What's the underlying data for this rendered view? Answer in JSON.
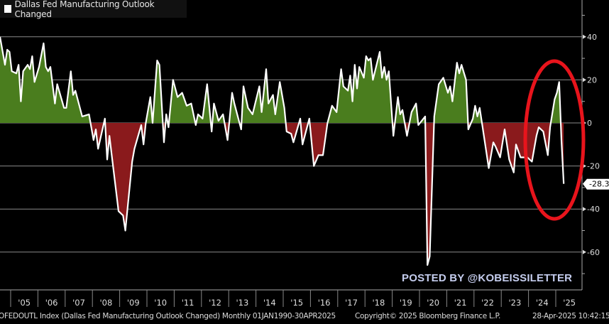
{
  "legend": {
    "label": "Dallas Fed Manufacturing Outlook Changed"
  },
  "watermark": "POSTED BY @KOBEISSILETTER",
  "footer": {
    "index_info": "OFEDOUTL Index (Dallas Fed Manufacturing Outlook Changed)  Monthly 01JAN1990-30APR2025",
    "copyright": "Copyright© 2025 Bloomberg Finance L.P.",
    "timestamp": "28-Apr-2025 10:42:15"
  },
  "colors": {
    "positive_fill": "#4a7d1e",
    "negative_fill": "#8a1a1c",
    "line": "#ffffff",
    "annotation_ellipse": "#e8141c",
    "watermark": "#c5cdee",
    "grid": "#8a8a8a"
  },
  "chart_data": {
    "type": "area",
    "title": "",
    "xlabel": "",
    "ylabel": "",
    "ylim": [
      -70,
      57
    ],
    "xlim": [
      "2004-08",
      "2025-04"
    ],
    "y_ticks": [
      40,
      20,
      0,
      -20,
      -40,
      -60
    ],
    "x_tick_labels": [
      "'05",
      "'06",
      "'07",
      "'08",
      "'09",
      "'10",
      "'11",
      "'12",
      "'13",
      "'14",
      "'15",
      "'16",
      "'17",
      "'18",
      "'19",
      "'20",
      "'21",
      "'22",
      "'23",
      "'24",
      "'25"
    ],
    "grid": true,
    "axis_position": "right",
    "last_value_label": "-28.3",
    "annotation": "red ellipse",
    "series": [
      {
        "name": "Dallas Fed Manufacturing Outlook Changed",
        "points": [
          [
            "2004-08",
            40
          ],
          [
            "2004-10",
            27
          ],
          [
            "2004-11",
            34
          ],
          [
            "2004-12",
            33
          ],
          [
            "2005-01",
            24
          ],
          [
            "2005-03",
            23
          ],
          [
            "2005-04",
            27
          ],
          [
            "2005-05",
            10
          ],
          [
            "2005-06",
            24
          ],
          [
            "2005-08",
            27
          ],
          [
            "2005-09",
            25
          ],
          [
            "2005-10",
            31
          ],
          [
            "2005-11",
            19
          ],
          [
            "2006-01",
            26
          ],
          [
            "2006-03",
            37
          ],
          [
            "2006-04",
            26
          ],
          [
            "2006-05",
            24
          ],
          [
            "2006-06",
            26
          ],
          [
            "2006-08",
            9
          ],
          [
            "2006-09",
            18
          ],
          [
            "2006-12",
            7
          ],
          [
            "2007-01",
            7
          ],
          [
            "2007-03",
            24
          ],
          [
            "2007-04",
            13
          ],
          [
            "2007-05",
            15
          ],
          [
            "2007-08",
            3
          ],
          [
            "2007-11",
            4
          ],
          [
            "2008-01",
            -8
          ],
          [
            "2008-02",
            -3
          ],
          [
            "2008-03",
            -12
          ],
          [
            "2008-06",
            2
          ],
          [
            "2008-07",
            -17
          ],
          [
            "2008-08",
            -6
          ],
          [
            "2008-09",
            -15
          ],
          [
            "2008-12",
            -41
          ],
          [
            "2009-02",
            -43
          ],
          [
            "2009-03",
            -50
          ],
          [
            "2009-06",
            -18
          ],
          [
            "2009-07",
            -12
          ],
          [
            "2009-10",
            -1
          ],
          [
            "2009-11",
            -10
          ],
          [
            "2009-12",
            0
          ],
          [
            "2010-02",
            12
          ],
          [
            "2010-03",
            0
          ],
          [
            "2010-05",
            29
          ],
          [
            "2010-06",
            27
          ],
          [
            "2010-08",
            -9
          ],
          [
            "2010-09",
            4
          ],
          [
            "2010-10",
            -2
          ],
          [
            "2010-12",
            20
          ],
          [
            "2011-02",
            12
          ],
          [
            "2011-04",
            14
          ],
          [
            "2011-06",
            8
          ],
          [
            "2011-08",
            9
          ],
          [
            "2011-10",
            -1
          ],
          [
            "2011-11",
            4
          ],
          [
            "2012-01",
            2
          ],
          [
            "2012-03",
            18
          ],
          [
            "2012-05",
            -4
          ],
          [
            "2012-06",
            9
          ],
          [
            "2012-08",
            1
          ],
          [
            "2012-10",
            4
          ],
          [
            "2012-12",
            -8
          ],
          [
            "2013-02",
            14
          ],
          [
            "2013-03",
            9
          ],
          [
            "2013-06",
            -3
          ],
          [
            "2013-07",
            17
          ],
          [
            "2013-09",
            7
          ],
          [
            "2013-11",
            4
          ],
          [
            "2014-02",
            17
          ],
          [
            "2014-03",
            5
          ],
          [
            "2014-05",
            25
          ],
          [
            "2014-06",
            9
          ],
          [
            "2014-08",
            13
          ],
          [
            "2014-09",
            4
          ],
          [
            "2014-11",
            19
          ],
          [
            "2015-01",
            7
          ],
          [
            "2015-02",
            -4
          ],
          [
            "2015-04",
            -5
          ],
          [
            "2015-05",
            -9
          ],
          [
            "2015-08",
            2
          ],
          [
            "2015-09",
            -10
          ],
          [
            "2015-12",
            2
          ],
          [
            "2016-02",
            -20
          ],
          [
            "2016-04",
            -15
          ],
          [
            "2016-06",
            -15
          ],
          [
            "2016-08",
            0
          ],
          [
            "2016-10",
            8
          ],
          [
            "2016-12",
            5
          ],
          [
            "2017-02",
            25
          ],
          [
            "2017-03",
            17
          ],
          [
            "2017-05",
            15
          ],
          [
            "2017-06",
            22
          ],
          [
            "2017-07",
            10
          ],
          [
            "2017-08",
            27
          ],
          [
            "2017-09",
            16
          ],
          [
            "2017-10",
            26
          ],
          [
            "2017-12",
            21
          ],
          [
            "2018-01",
            31
          ],
          [
            "2018-02",
            29
          ],
          [
            "2018-03",
            30
          ],
          [
            "2018-04",
            20
          ],
          [
            "2018-07",
            33
          ],
          [
            "2018-08",
            21
          ],
          [
            "2018-09",
            26
          ],
          [
            "2018-10",
            20
          ],
          [
            "2018-11",
            24
          ],
          [
            "2019-01",
            -6
          ],
          [
            "2019-03",
            12
          ],
          [
            "2019-04",
            4
          ],
          [
            "2019-05",
            6
          ],
          [
            "2019-07",
            -6
          ],
          [
            "2019-09",
            5
          ],
          [
            "2019-11",
            9
          ],
          [
            "2019-12",
            -1
          ],
          [
            "2020-03",
            3
          ],
          [
            "2020-04",
            -66
          ],
          [
            "2020-05",
            -62
          ],
          [
            "2020-07",
            3
          ],
          [
            "2020-09",
            18
          ],
          [
            "2020-11",
            21
          ],
          [
            "2021-01",
            14
          ],
          [
            "2021-02",
            17
          ],
          [
            "2021-03",
            10
          ],
          [
            "2021-05",
            28
          ],
          [
            "2021-06",
            23
          ],
          [
            "2021-07",
            27
          ],
          [
            "2021-09",
            20
          ],
          [
            "2021-10",
            -3
          ],
          [
            "2021-12",
            2
          ],
          [
            "2022-01",
            8
          ],
          [
            "2022-02",
            3
          ],
          [
            "2022-03",
            7
          ],
          [
            "2022-04",
            0
          ],
          [
            "2022-07",
            -21
          ],
          [
            "2022-09",
            -9
          ],
          [
            "2022-10",
            -11
          ],
          [
            "2022-12",
            -16
          ],
          [
            "2023-02",
            -3
          ],
          [
            "2023-04",
            -17
          ],
          [
            "2023-06",
            -23
          ],
          [
            "2023-07",
            -10
          ],
          [
            "2023-09",
            -16
          ],
          [
            "2023-12",
            -16
          ],
          [
            "2024-02",
            -18
          ],
          [
            "2024-04",
            -6
          ],
          [
            "2024-05",
            -2
          ],
          [
            "2024-07",
            -4
          ],
          [
            "2024-09",
            -15
          ],
          [
            "2024-10",
            -2
          ],
          [
            "2024-12",
            11
          ],
          [
            "2025-01",
            14
          ],
          [
            "2025-02",
            19
          ],
          [
            "2025-03",
            -8
          ],
          [
            "2025-04",
            -28.3
          ]
        ]
      }
    ]
  }
}
